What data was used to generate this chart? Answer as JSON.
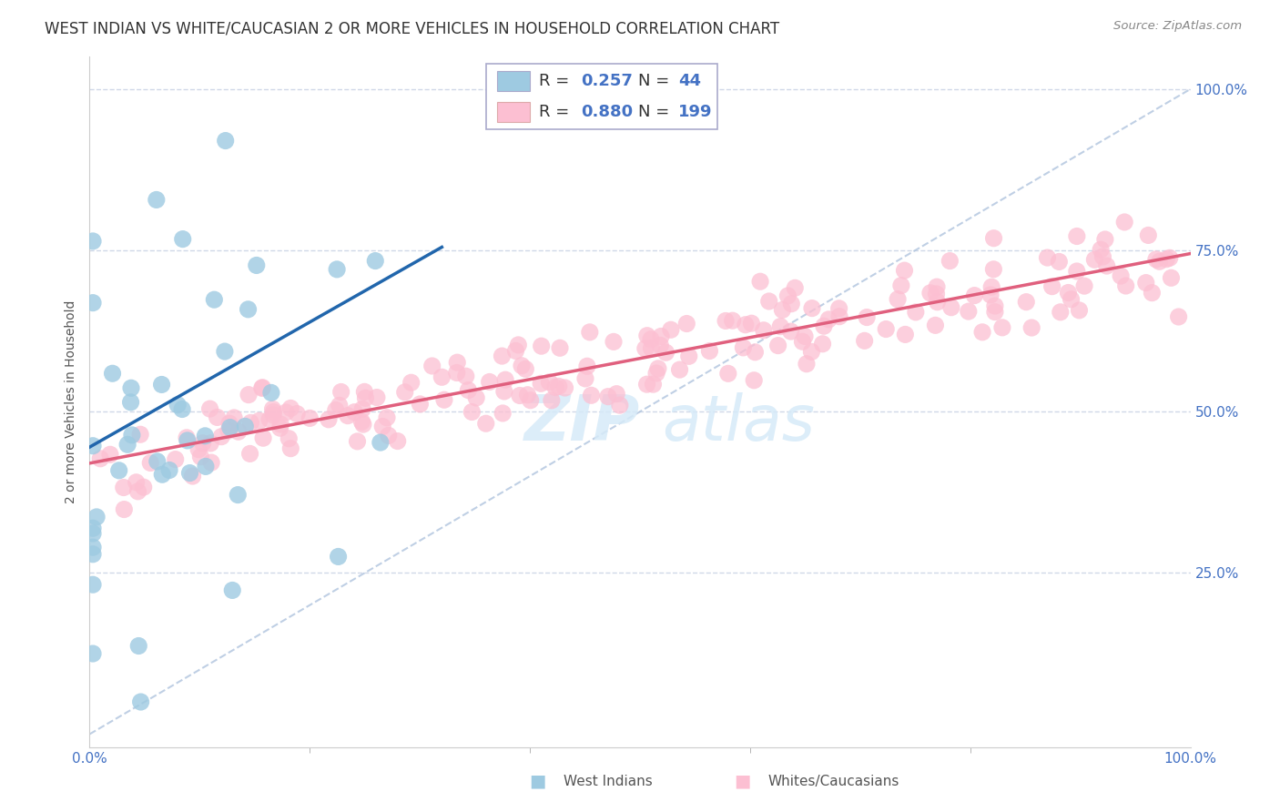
{
  "title": "WEST INDIAN VS WHITE/CAUCASIAN 2 OR MORE VEHICLES IN HOUSEHOLD CORRELATION CHART",
  "source": "Source: ZipAtlas.com",
  "ylabel": "2 or more Vehicles in Household",
  "yticks": [
    "25.0%",
    "50.0%",
    "75.0%",
    "100.0%"
  ],
  "ytick_positions": [
    0.25,
    0.5,
    0.75,
    1.0
  ],
  "legend_labels": [
    "West Indians",
    "Whites/Caucasians"
  ],
  "blue_R": 0.257,
  "blue_N": 44,
  "pink_R": 0.88,
  "pink_N": 199,
  "blue_color": "#9ecae1",
  "pink_color": "#fcbfd2",
  "blue_line_color": "#2166ac",
  "pink_line_color": "#e0607e",
  "dashed_line_color": "#b0c4de",
  "background_color": "#ffffff",
  "grid_color": "#d0d8e8",
  "title_fontsize": 12,
  "axis_label_fontsize": 10,
  "tick_fontsize": 11,
  "legend_fontsize": 13,
  "watermark_color": "#d6eaf8",
  "xlim": [
    0.0,
    1.0
  ],
  "ylim": [
    -0.02,
    1.05
  ],
  "blue_line_start_x": 0.0,
  "blue_line_start_y": 0.445,
  "blue_line_end_x": 0.32,
  "blue_line_end_y": 0.755,
  "pink_line_start_x": 0.0,
  "pink_line_start_y": 0.42,
  "pink_line_end_x": 1.0,
  "pink_line_end_y": 0.745
}
